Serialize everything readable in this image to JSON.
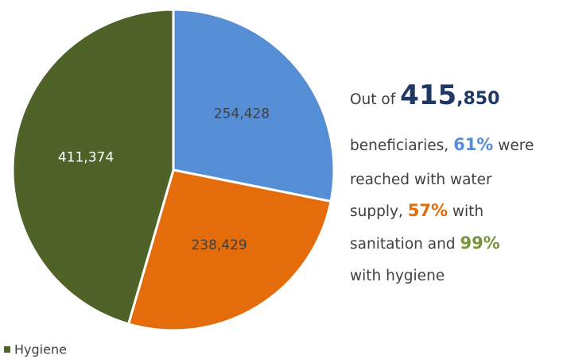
{
  "chart_data": {
    "type": "pie",
    "categories": [
      null,
      null,
      "Hygiene"
    ],
    "values": [
      254428,
      238429,
      411374
    ],
    "value_labels": [
      "254,428",
      "238,429",
      "411,374"
    ],
    "colors": [
      "#558ed5",
      "#e46c0a",
      "#4f6228"
    ],
    "label_colors": [
      "#404040",
      "#404040",
      "#ffffff"
    ],
    "legend": "bottom-left",
    "annotation": [
      [
        {
          "text": "Out of"
        },
        {
          "text": "415",
          "color": "#1f3864",
          "bold": true,
          "size": 34
        },
        {
          "text": ",850",
          "color": "#1f3864",
          "bold": true,
          "size": 22,
          "join": true
        }
      ],
      [
        {
          "text": "beneficiaries,"
        },
        {
          "text": "61%",
          "color": "#558ed5",
          "bold": true,
          "size": 21
        },
        {
          "text": "were"
        }
      ],
      [
        {
          "text": "reached with water"
        }
      ],
      [
        {
          "text": "supply,"
        },
        {
          "text": "57%",
          "color": "#e46c0a",
          "bold": true,
          "size": 21
        },
        {
          "text": "with"
        }
      ],
      [
        {
          "text": "sanitation and"
        },
        {
          "text": "99%",
          "color": "#77933c",
          "bold": true,
          "size": 21
        }
      ],
      [
        {
          "text": "with hygiene"
        }
      ]
    ]
  }
}
